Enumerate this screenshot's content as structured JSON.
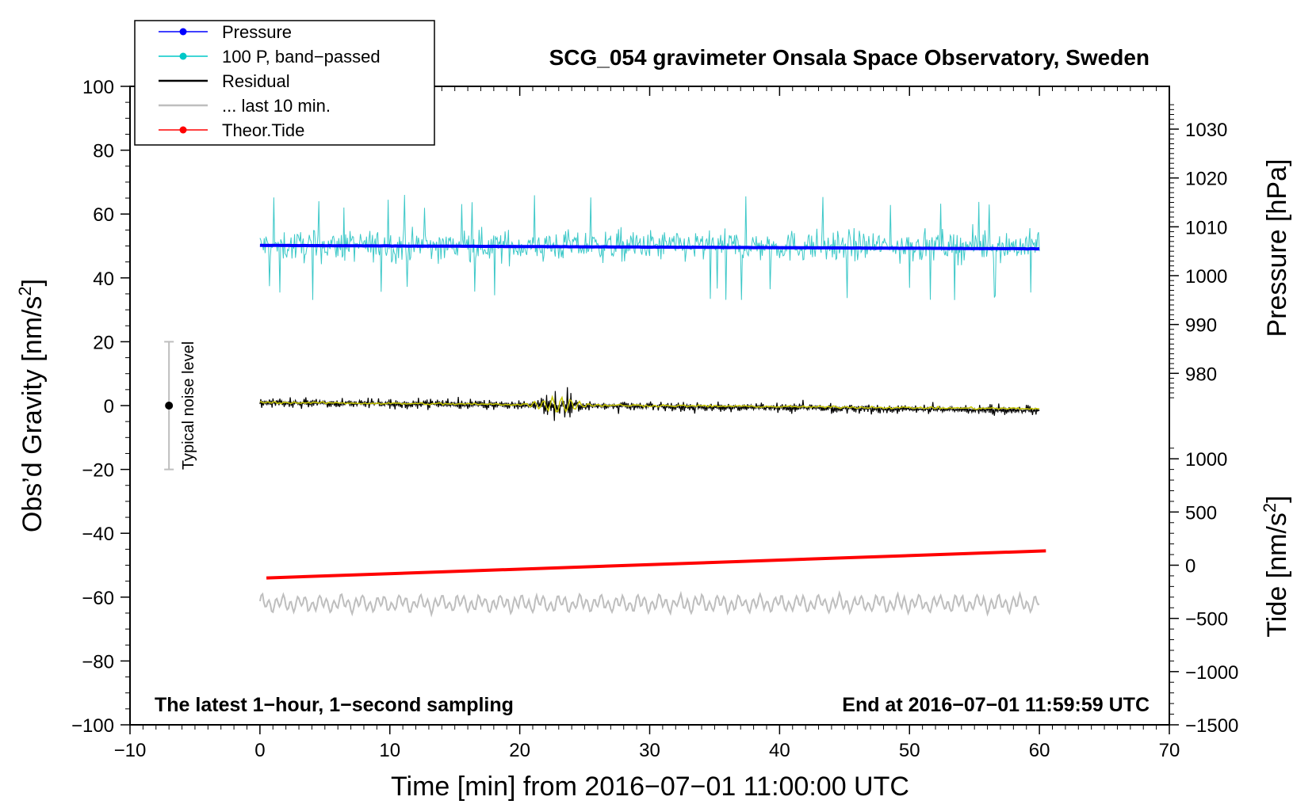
{
  "chart_data": {
    "type": "line",
    "title": "SCG_054 gravimeter Onsala Space Observatory, Sweden",
    "xlabel": "Time [min] from 2016−07−01 11:00:00 UTC",
    "ylabel_main": "Obs’d Gravity [nm/s",
    "ylabel_main_sup": "2",
    "ylabel_main_end": "]",
    "ylabel_pressure": "Pressure [hPa]",
    "ylabel_tide": "Tide [nm/s",
    "ylabel_tide_sup": "2",
    "ylabel_tide_end": "]",
    "xlim": [
      -10,
      70
    ],
    "ylim": [
      -100,
      100
    ],
    "x_ticks": [
      -10,
      0,
      10,
      20,
      30,
      40,
      50,
      60,
      70
    ],
    "x_tick_labels": [
      "−10",
      "0",
      "10",
      "20",
      "30",
      "40",
      "50",
      "60",
      "70"
    ],
    "y_ticks": [
      -100,
      -80,
      -60,
      -40,
      -20,
      0,
      20,
      40,
      60,
      80,
      100
    ],
    "y_tick_labels": [
      "−100",
      "−80",
      "−60",
      "−40",
      "−20",
      "0",
      "20",
      "40",
      "60",
      "80",
      "100"
    ],
    "pressure_axis": {
      "ticks": [
        980,
        990,
        1000,
        1010,
        1020,
        1030
      ],
      "tick_labels": [
        "980",
        "990",
        "1000",
        "1010",
        "1020",
        "1030"
      ],
      "ref_value": 1000,
      "ref_gravity": 40.7,
      "gravity_per_hpa": 1.53
    },
    "tide_axis": {
      "ticks": [
        -1500,
        -1000,
        -500,
        0,
        500,
        1000
      ],
      "tick_labels": [
        "−1500",
        "−1000",
        "−500",
        "0",
        "500",
        "1000"
      ],
      "ref_value": 0,
      "ref_gravity": -50,
      "gravity_per_unit": 0.03333
    },
    "annotation_left": "The latest 1−hour, 1−second sampling",
    "annotation_right": "End at 2016−07−01 11:59:59 UTC",
    "noise_marker": {
      "label": "Typical noise level",
      "x": -7,
      "center": 0,
      "low": -20,
      "high": 20
    },
    "legend": [
      {
        "label": "Pressure",
        "color": "#0000ff",
        "marker": true
      },
      {
        "label": "100 P, band−passed",
        "color": "#00c8c8",
        "marker": true
      },
      {
        "label": "Residual",
        "color": "#000000",
        "marker": false
      },
      {
        "label": "... last 10 min.",
        "color": "#bebebe",
        "marker": false
      },
      {
        "label": "Theor.Tide",
        "color": "#ff0000",
        "marker": true
      }
    ],
    "series": [
      {
        "name": "Pressure",
        "color": "#0000ff",
        "x_range": [
          0,
          60
        ],
        "start": 1006.2,
        "end": 1005.5,
        "unit": "hPa"
      },
      {
        "name": "100 P, band−passed",
        "color": "#3cc8c8",
        "x_range": [
          0,
          60
        ],
        "center": 50,
        "amplitude_typ": 6,
        "amplitude_max": 17
      },
      {
        "name": "Residual",
        "color": "#000000",
        "x_range": [
          0,
          60
        ],
        "start": 1,
        "end": -1.5,
        "amplitude_typ": 2.5,
        "burst_at": 23,
        "burst_amplitude": 7
      },
      {
        "name": "Residual (smoothed)",
        "color": "#c8c800",
        "x_range": [
          0,
          60
        ],
        "start": 1,
        "end": -1
      },
      {
        "name": "... last 10 min.",
        "color": "#bebebe",
        "x_range": [
          0,
          60
        ],
        "center": -62,
        "amplitude_typ": 2.5
      },
      {
        "name": "Theor.Tide",
        "color": "#ff0000",
        "x_range": [
          0.5,
          60.5
        ],
        "start": -54,
        "end": -45.5,
        "unit": "gravity axis"
      }
    ]
  }
}
